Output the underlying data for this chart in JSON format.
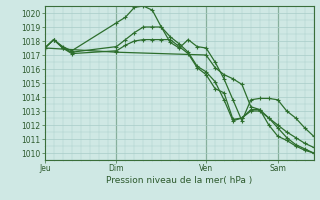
{
  "background_color": "#cfe8e4",
  "grid_color": "#a8ccc8",
  "line_color": "#2d6e2d",
  "xlabel": "Pression niveau de la mer( hPa )",
  "ylim": [
    1009.5,
    1020.5
  ],
  "xtick_labels": [
    "Jeu",
    "Dim",
    "Ven",
    "Sam"
  ],
  "xtick_positions": [
    0,
    8,
    18,
    26
  ],
  "vline_positions": [
    8,
    18,
    26
  ],
  "line1_x": [
    0,
    1,
    2,
    3,
    8,
    9,
    10,
    11,
    12,
    13,
    14,
    15,
    16,
    17,
    18,
    19,
    20,
    21,
    22,
    23,
    24,
    25,
    26,
    27,
    28,
    29,
    30
  ],
  "line1_y": [
    1017.5,
    1018.1,
    1017.6,
    1017.3,
    1019.3,
    1019.7,
    1020.4,
    1020.5,
    1020.2,
    1019.0,
    1017.9,
    1017.5,
    1018.1,
    1017.6,
    1017.5,
    1016.5,
    1015.3,
    1013.8,
    1012.3,
    1013.8,
    1013.9,
    1013.9,
    1013.8,
    1013.0,
    1012.5,
    1011.8,
    1011.2
  ],
  "line2_x": [
    0,
    1,
    2,
    3,
    8,
    9,
    10,
    11,
    12,
    13,
    14,
    15,
    16,
    17,
    18,
    19,
    20,
    21,
    22,
    23,
    24,
    25,
    26,
    27,
    28,
    29,
    30
  ],
  "line2_y": [
    1017.5,
    1018.1,
    1017.5,
    1017.2,
    1017.6,
    1018.1,
    1018.6,
    1019.0,
    1019.0,
    1019.0,
    1018.3,
    1017.8,
    1017.2,
    1016.2,
    1015.8,
    1015.1,
    1013.8,
    1012.3,
    1012.5,
    1013.0,
    1013.0,
    1012.5,
    1012.0,
    1011.5,
    1011.1,
    1010.7,
    1010.4
  ],
  "line3_x": [
    0,
    1,
    2,
    3,
    8,
    9,
    10,
    11,
    12,
    13,
    14,
    15,
    16,
    17,
    18,
    19,
    20,
    21,
    22,
    23,
    24,
    25,
    26,
    27,
    28,
    29,
    30
  ],
  "line3_y": [
    1017.5,
    1018.1,
    1017.5,
    1017.1,
    1017.3,
    1017.7,
    1018.0,
    1018.1,
    1018.1,
    1018.1,
    1018.1,
    1017.6,
    1017.1,
    1016.1,
    1015.6,
    1014.6,
    1014.3,
    1012.4,
    1012.5,
    1013.1,
    1013.1,
    1012.0,
    1011.2,
    1010.9,
    1010.5,
    1010.2,
    1010.0
  ],
  "line4_x": [
    0,
    8,
    18,
    19,
    20,
    21,
    22,
    23,
    24,
    25,
    26,
    27,
    28,
    29,
    30
  ],
  "line4_y": [
    1017.5,
    1017.2,
    1017.0,
    1016.1,
    1015.6,
    1015.3,
    1014.9,
    1013.3,
    1013.1,
    1012.5,
    1011.8,
    1011.1,
    1010.6,
    1010.3,
    1010.0
  ],
  "marker": "+",
  "markersize": 3,
  "linewidth": 0.9
}
